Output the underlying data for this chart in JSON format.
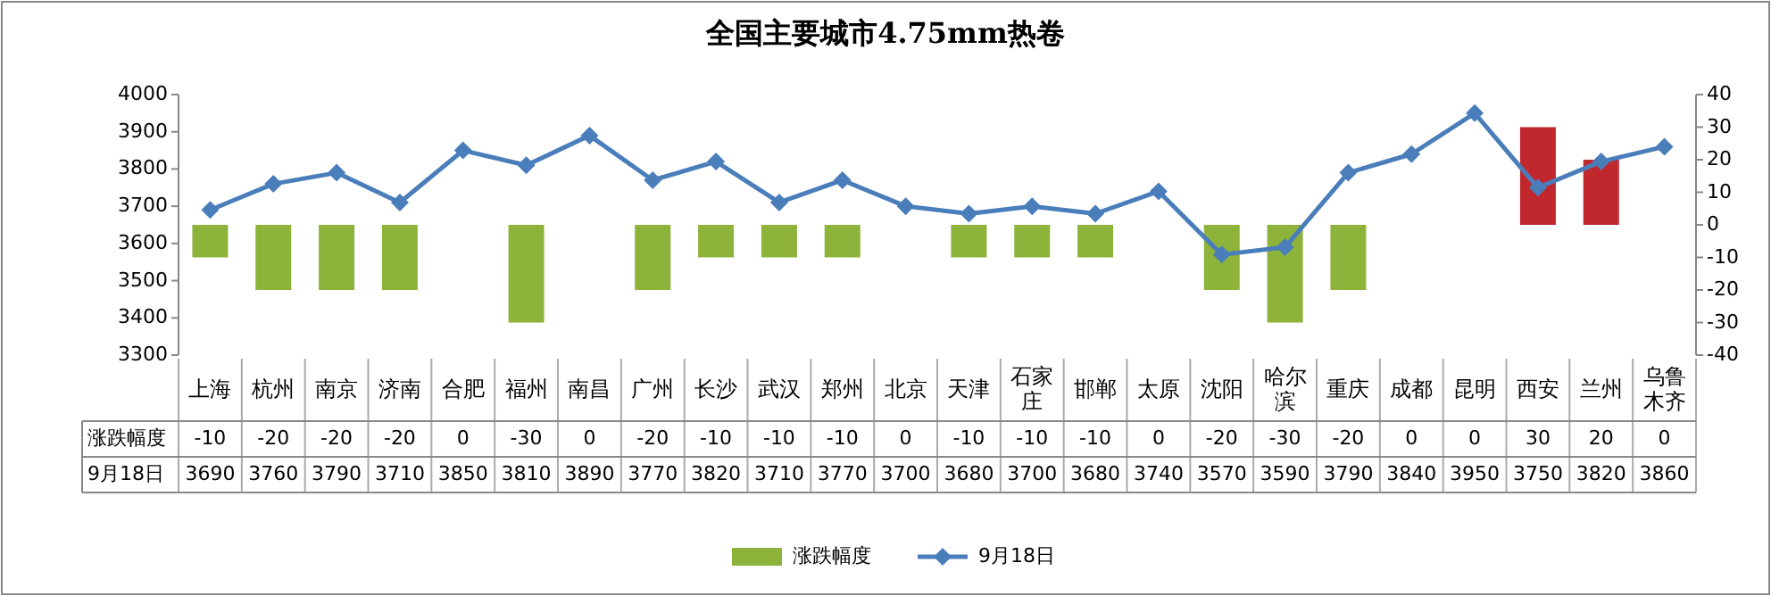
{
  "chart_data": {
    "type": "bar",
    "title": "全国主要城市4.75mm热卷",
    "categories": [
      "上海",
      "杭州",
      "南京",
      "济南",
      "合肥",
      "福州",
      "南昌",
      "广州",
      "长沙",
      "武汉",
      "郑州",
      "北京",
      "天津",
      "石家庄",
      "邯郸",
      "太原",
      "沈阳",
      "哈尔滨",
      "重庆",
      "成都",
      "昆明",
      "西安",
      "兰州",
      "乌鲁木齐"
    ],
    "series": [
      {
        "name": "涨跌幅度",
        "axis": "y2",
        "values": [
          -10,
          -20,
          -20,
          -20,
          0,
          -30,
          0,
          -20,
          -10,
          -10,
          -10,
          0,
          -10,
          -10,
          -10,
          0,
          -20,
          -30,
          -20,
          0,
          0,
          30,
          20,
          0
        ],
        "colors": [
          "#8db33a",
          "#8db33a",
          "#8db33a",
          "#8db33a",
          "#8db33a",
          "#8db33a",
          "#8db33a",
          "#8db33a",
          "#8db33a",
          "#8db33a",
          "#8db33a",
          "#8db33a",
          "#8db33a",
          "#8db33a",
          "#8db33a",
          "#8db33a",
          "#8db33a",
          "#8db33a",
          "#8db33a",
          "#8db33a",
          "#8db33a",
          "#c0282d",
          "#c0282d",
          "#8db33a"
        ]
      },
      {
        "name": "9月18日",
        "type": "line",
        "color": "#4a7ebb",
        "values": [
          3690,
          3760,
          3790,
          3710,
          3850,
          3810,
          3890,
          3770,
          3820,
          3710,
          3770,
          3700,
          3680,
          3700,
          3680,
          3740,
          3570,
          3590,
          3790,
          3840,
          3950,
          3750,
          3820,
          3860
        ]
      }
    ],
    "ylim": [
      3300,
      4000
    ],
    "yticks": [
      3300,
      3400,
      3500,
      3600,
      3700,
      3800,
      3900,
      4000
    ],
    "y2lim": [
      -40,
      40
    ],
    "y2ticks": [
      -40,
      -30,
      -20,
      -10,
      0,
      10,
      20,
      30,
      40
    ],
    "marker": "diamond",
    "data_labels": true,
    "legend": "bottom"
  }
}
